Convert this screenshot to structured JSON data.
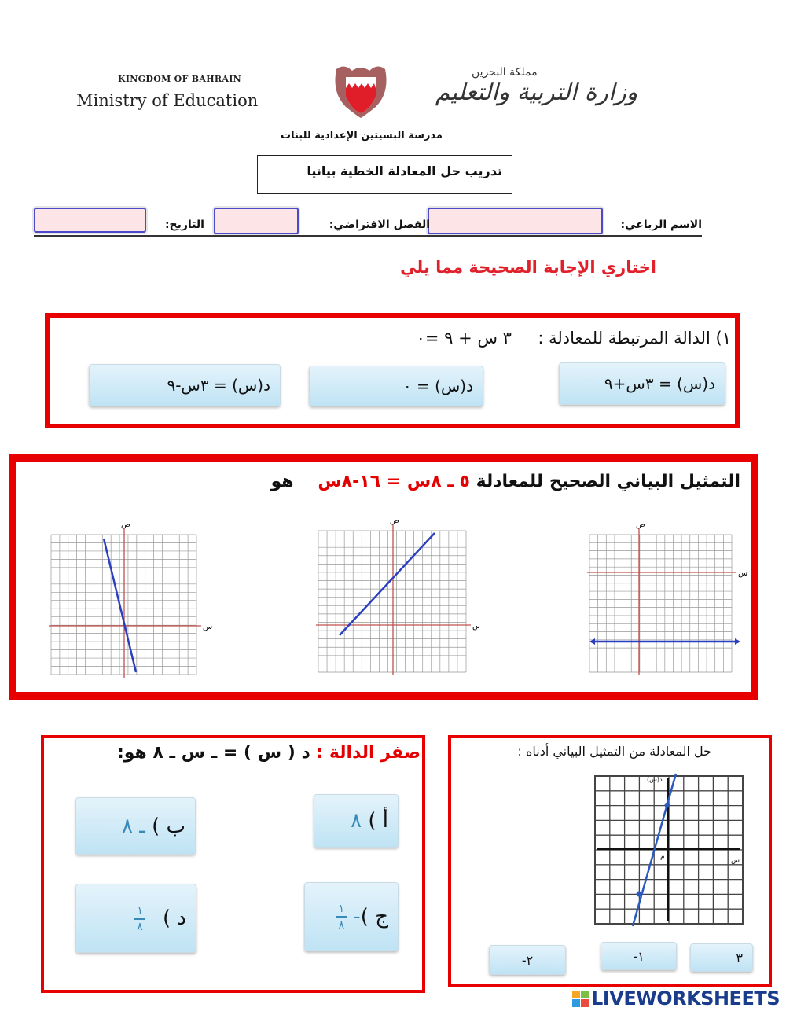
{
  "header": {
    "kingdom_en": "KINGDOM OF BAHRAIN",
    "ministry_en": "Ministry of Education",
    "kingdom_ar": "مملكة البحرين",
    "ministry_ar": "وزارة التربية والتعليم",
    "school": "مدرسة البسيتين الإعدادية للبنات",
    "title": "تدريب حل المعادلة الخطية بيانيا"
  },
  "fields": {
    "name_label": "الاسم الرباعي:",
    "name_value": "",
    "class_label": "الفصل الافتراضي:",
    "class_value": "",
    "date_label": "التاريخ:",
    "date_value": ""
  },
  "instruction": "اختاري الإجابة الصحيحة مما يلي",
  "q1": {
    "prompt": "١) الدالة المرتبطة للمعادلة :",
    "equation": "٣ س + ٩ =٠",
    "options": [
      "د(س) = ٣س+٩",
      "د(س) = ٠",
      "د(س) = ٣س-٩"
    ]
  },
  "q2": {
    "prompt": "التمثيل البياني الصحيح للمعادلة",
    "equation": "٥ ـ ٨س = ١٦-٨س",
    "suffix": "هو",
    "axis_x": "س",
    "axis_y": "ص"
  },
  "q3": {
    "prompt": "صفر الدالة :",
    "equation": "د ( س ) = ـ س ـ ٨ هو:",
    "options": [
      {
        "letter": "أ )",
        "value": "٨"
      },
      {
        "letter": "ب )",
        "value": "ـ ٨"
      },
      {
        "letter": "ج )",
        "sign": "-",
        "num": "١",
        "den": "٨"
      },
      {
        "letter": "د )",
        "num": "١",
        "den": "٨"
      }
    ]
  },
  "q4": {
    "prompt": "حل المعادلة من التمثيل البياني أدناه :",
    "axis_y": "د(س)",
    "axis_x": "س",
    "origin": "م",
    "options": [
      "٣",
      "١-",
      "٢-"
    ]
  },
  "brand": "LIVEWORKSHEETS",
  "colors": {
    "frame_red": "#e80000",
    "button_blue": "#bfe3f4",
    "field_pink": "#fde4e6",
    "line_blue": "#2a3fc0"
  }
}
